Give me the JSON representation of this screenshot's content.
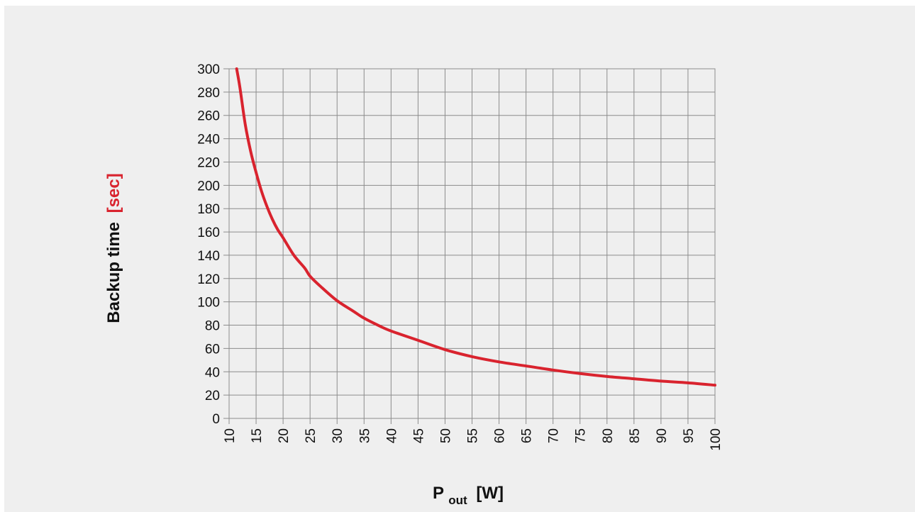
{
  "chart_data": {
    "type": "line",
    "title": "",
    "xlabel": {
      "main": "P",
      "subscript": "out",
      "unit": "[W]"
    },
    "ylabel": {
      "main": "Backup time",
      "unit": "[sec]"
    },
    "xlim": [
      10,
      100
    ],
    "ylim": [
      0,
      300
    ],
    "x_ticks": [
      "10",
      "15",
      "20",
      "25",
      "30",
      "35",
      "40",
      "45",
      "50",
      "55",
      "60",
      "65",
      "70",
      "75",
      "80",
      "85",
      "90",
      "95",
      "100"
    ],
    "y_ticks": [
      "0",
      "20",
      "40",
      "60",
      "80",
      "100",
      "120",
      "140",
      "160",
      "180",
      "200",
      "220",
      "240",
      "260",
      "280",
      "300"
    ],
    "grid": true,
    "legend": "none",
    "series": [
      {
        "color": "#d9232e",
        "x": [
          11.4,
          12,
          13,
          14,
          15,
          16,
          17,
          18,
          19,
          20,
          22,
          24,
          25,
          27,
          30,
          33,
          35,
          38,
          40,
          45,
          50,
          55,
          60,
          65,
          70,
          75,
          80,
          85,
          90,
          95,
          100
        ],
        "y": [
          300,
          284,
          252,
          229,
          211,
          195,
          182,
          171,
          162,
          155,
          140,
          129,
          122,
          113,
          101,
          92,
          86,
          79,
          75,
          67,
          59,
          53,
          48.5,
          45,
          41.5,
          38.5,
          36,
          34,
          32,
          30.5,
          28.5
        ]
      }
    ],
    "colors": {
      "curve": "#d9232e",
      "grid": "#8c8c8c",
      "background": "#efefef",
      "unit_highlight": "#d9232e"
    }
  }
}
